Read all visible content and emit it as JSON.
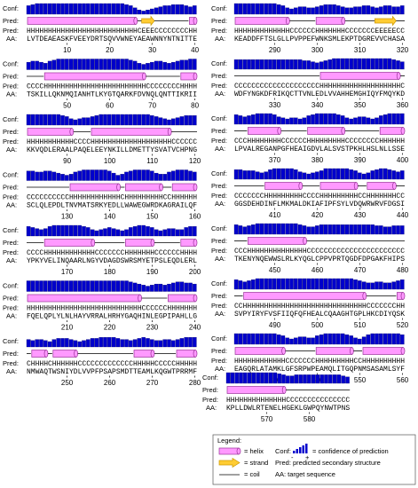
{
  "labels": {
    "conf": "Conf:",
    "pred": "Pred:",
    "aa": "AA:"
  },
  "blocks": [
    {
      "conf": [
        7,
        8,
        9,
        9,
        9,
        9,
        9,
        9,
        9,
        9,
        9,
        9,
        9,
        9,
        9,
        9,
        9,
        9,
        9,
        9,
        9,
        9,
        9,
        8,
        7,
        5,
        3,
        2,
        3,
        4,
        5,
        6,
        7,
        7,
        8,
        8,
        8,
        7,
        6,
        7
      ],
      "pred": "HHHHHHHHHHHHHHHHHHHHHHHHHHCEEECCCCCCCCHH",
      "aa": "LVTDEAEASKFVEEYDRTSQVVWNEYAEAWNNYNTNITTE",
      "ticks": [
        10,
        20,
        30,
        40
      ]
    },
    {
      "conf": [
        6,
        7,
        7,
        6,
        5,
        7,
        8,
        9,
        9,
        9,
        9,
        9,
        9,
        9,
        9,
        9,
        9,
        9,
        9,
        9,
        9,
        9,
        9,
        9,
        8,
        7,
        5,
        4,
        5,
        6,
        7,
        7,
        6,
        5,
        6,
        7,
        8,
        8,
        9,
        9
      ],
      "pred": "CCCCHHHHHHHHHHHHHHHHHHHHHHHHCCCCCCCCHHHH",
      "aa": "TSKILLQKNMQIANHTLKYGTQARKFDVNQLQNTTIKRII",
      "ticks": [
        50,
        60,
        70,
        80
      ]
    },
    {
      "conf": [
        9,
        9,
        9,
        9,
        9,
        9,
        9,
        9,
        8,
        7,
        5,
        4,
        5,
        6,
        6,
        7,
        8,
        9,
        9,
        9,
        9,
        9,
        9,
        9,
        9,
        9,
        9,
        9,
        9,
        8,
        7,
        6,
        5,
        4,
        5,
        6,
        7,
        8,
        8,
        8
      ],
      "pred": "HHHHHHHHHHHCCCCHHHHHHHHHHHHHHHHHHHCCCCCC",
      "aa": "KKVQDLERAALPAQELEEYNKILLDMETTYSVATVCHPNG",
      "ticks": [
        90,
        100,
        110,
        120
      ]
    },
    {
      "conf": [
        8,
        8,
        7,
        7,
        8,
        8,
        7,
        6,
        5,
        4,
        5,
        7,
        8,
        9,
        9,
        9,
        9,
        9,
        9,
        8,
        6,
        4,
        5,
        7,
        8,
        9,
        9,
        9,
        9,
        8,
        6,
        5,
        5,
        7,
        8,
        9,
        9,
        9,
        8,
        7
      ],
      "pred": "CCCCCCCCCCHHHHHHHHHHHHCHHHHHHHHHCCHHHHHH",
      "aa": "SCLQLEPDLTNVMATSRKYEDLLWAWEGWRDKAGRAILQF",
      "ticks": [
        130,
        140,
        150,
        160
      ]
    },
    {
      "conf": [
        8,
        7,
        6,
        5,
        6,
        8,
        9,
        9,
        9,
        9,
        9,
        9,
        9,
        8,
        7,
        5,
        4,
        5,
        6,
        7,
        6,
        5,
        4,
        5,
        7,
        8,
        9,
        9,
        8,
        7,
        5,
        4,
        5,
        6,
        6,
        5,
        5,
        7,
        8,
        8
      ],
      "pred": "CCCCHHHHHHHHHHHHCCCCCCCHHHHHHHCCCCCCHHHH",
      "aa": "YPKYVELINQAARLNGYVDAGDSWRSMYETPSLEQDLERL",
      "ticks": [
        170,
        180,
        190,
        200
      ]
    },
    {
      "conf": [
        9,
        9,
        9,
        9,
        9,
        9,
        9,
        9,
        9,
        9,
        9,
        9,
        9,
        9,
        9,
        9,
        9,
        9,
        9,
        9,
        9,
        9,
        9,
        9,
        8,
        7,
        6,
        5,
        4,
        5,
        6,
        6,
        5,
        6,
        7,
        8,
        8,
        7,
        7,
        6
      ],
      "pred": "HHHHHHHHHHHHHHHHHHHHHHHHHHHCCCCCCHHHHHHH",
      "aa": "FQELQPLYLNLHAYVRRALHRHYGAQHINLEGPIPAHLLG",
      "ticks": [
        210,
        220,
        230,
        240
      ]
    },
    {
      "conf": [
        6,
        5,
        6,
        6,
        5,
        4,
        6,
        7,
        7,
        7,
        6,
        5,
        4,
        5,
        6,
        7,
        7,
        8,
        8,
        8,
        8,
        7,
        6,
        6,
        5,
        6,
        7,
        8,
        7,
        6,
        5,
        5,
        6,
        6,
        5,
        6,
        7,
        8,
        8,
        8
      ],
      "pred": "CHHHHCHHHHHHCCCCCCCCCCCCCHHHHHCCCCCHHHHH",
      "aa": "NMWAQTWSNIYDLVVPFPSAPSMDTTEAMLKQGWTPRRMF",
      "ticks": [
        250,
        260,
        270,
        280
      ]
    },
    {
      "conf": [
        9,
        9,
        9,
        9,
        9,
        9,
        9,
        9,
        9,
        9,
        8,
        7,
        5,
        4,
        5,
        6,
        6,
        5,
        5,
        6,
        7,
        8,
        8,
        8,
        7,
        6,
        5,
        5,
        6,
        6,
        7,
        7,
        6,
        5,
        6,
        7,
        7,
        6,
        6,
        7
      ],
      "pred": "HHHHHHHHHHHHHCCCCCCHHHHHHHCCCCCCCEEEEECC",
      "aa": "KEADDFFTSLGLLPVPPEFWNKSMLEKPTDGREVVCHASA",
      "ticks": [
        290,
        300,
        310,
        320
      ]
    },
    {
      "conf": [
        8,
        8,
        8,
        8,
        8,
        8,
        8,
        8,
        8,
        8,
        8,
        8,
        8,
        8,
        8,
        8,
        7,
        7,
        6,
        5,
        6,
        7,
        8,
        9,
        9,
        9,
        9,
        9,
        9,
        9,
        9,
        9,
        9,
        9,
        9,
        9,
        9,
        8,
        7,
        6
      ],
      "pred": "CCCCCCCCCCCCCCCCCCCCHHHHHHHHHHHHHHHHHHHC",
      "aa": "WDFYNGKDFRIKQCTTVNLEDLVVAHHEMGHIQYFMQYKD",
      "ticks": [
        330,
        340,
        350,
        360
      ]
    },
    {
      "conf": [
        8,
        7,
        6,
        7,
        8,
        9,
        9,
        9,
        9,
        8,
        6,
        5,
        4,
        5,
        5,
        4,
        5,
        7,
        8,
        9,
        9,
        9,
        9,
        9,
        8,
        7,
        5,
        4,
        5,
        6,
        6,
        5,
        4,
        5,
        7,
        8,
        9,
        9,
        9,
        9
      ],
      "pred": "CCCHHHHHHHHCCCCCCHHHHHHHHHCCCCCCCCHHHHHH",
      "aa": "LPVALREGANPGFHEAIGDVLALSVSTPKHLHSLNLLSSE",
      "ticks": [
        370,
        380,
        390,
        400
      ]
    },
    {
      "conf": [
        8,
        8,
        7,
        7,
        7,
        6,
        5,
        6,
        8,
        9,
        9,
        9,
        9,
        9,
        8,
        6,
        5,
        4,
        5,
        6,
        7,
        9,
        9,
        9,
        9,
        9,
        9,
        8,
        7,
        5,
        4,
        5,
        7,
        8,
        9,
        9,
        8,
        7,
        6,
        7
      ],
      "pred": "CCCCCCCHHHHHHHHHCCCCHHHHHHHHHCCHHHHHHHCC",
      "aa": "GGSDEHDINFLMKMALDKIAFIPFSYLVDQWRWRVFDGSI",
      "ticks": [
        410,
        420,
        430,
        440
      ]
    },
    {
      "conf": [
        8,
        7,
        6,
        7,
        8,
        9,
        9,
        9,
        9,
        9,
        9,
        9,
        9,
        9,
        9,
        8,
        7,
        6,
        6,
        7,
        8,
        8,
        8,
        8,
        8,
        8,
        8,
        8,
        8,
        8,
        8,
        8,
        8,
        7,
        7,
        6,
        6,
        7,
        7,
        7
      ],
      "pred": "CCCHHHHHHHHHHHHHHCCCCCCCCCCCCCCCCCCCCCCC",
      "aa": "TKENYNQEWWSLRLKYQGLCPPVPRTQGDFDPGAKFHIPS",
      "ticks": [
        450,
        460,
        470,
        480
      ]
    },
    {
      "conf": [
        8,
        7,
        6,
        7,
        8,
        9,
        9,
        9,
        9,
        9,
        9,
        9,
        9,
        9,
        9,
        9,
        9,
        9,
        9,
        9,
        9,
        9,
        9,
        9,
        9,
        9,
        9,
        9,
        8,
        7,
        6,
        5,
        5,
        6,
        6,
        5,
        5,
        6,
        7,
        8
      ],
      "pred": "CCHHHHHHHHHHHHHHHHHHHHHHHHHHHHHCCCCCCCHH",
      "aa": "SVPYIRYFVSFIIQFQFHEALCQAAGHTGPLHKCDIYQSK",
      "ticks": [
        490,
        500,
        510,
        520
      ]
    },
    {
      "conf": [
        9,
        9,
        9,
        9,
        9,
        9,
        9,
        9,
        9,
        9,
        8,
        7,
        5,
        4,
        5,
        6,
        6,
        5,
        5,
        7,
        8,
        9,
        9,
        9,
        9,
        9,
        8,
        7,
        5,
        4,
        6,
        8,
        9,
        9,
        9,
        9,
        9,
        9,
        9,
        8
      ],
      "pred": "HHHHHHHHHHHHCCCCCCCHHHHHHHHHCCHHHHHHHHHH",
      "aa": "EAGQRLATAMKLGFSRPWPEAMQLITGQPNMSASAMLSYF",
      "ticks": [
        530,
        540,
        550,
        560
      ]
    },
    {
      "conf": [
        9,
        9,
        9,
        9,
        9,
        9,
        9,
        9,
        9,
        9,
        9,
        9,
        8,
        7,
        6,
        6,
        7,
        7,
        7,
        7,
        7,
        7,
        7,
        7,
        7,
        7,
        7,
        6,
        5
      ],
      "pred": "HHHHHHHHHHHHHHCCCCCCCCCCCCCCC",
      "aa": "KPLLDWLRTENELHGEKLGWPQYNWTPNS",
      "ticks": [
        570,
        580
      ]
    }
  ],
  "legend": {
    "title": "Legend:",
    "helix": "= helix",
    "strand": "= strand",
    "coil": "= coil",
    "conf": "Conf:",
    "conf_desc": "= confidence of prediction",
    "minus": "-",
    "plus": "+",
    "pred_desc": "Pred: predicted secondary structure",
    "aa_desc": "AA: target sequence"
  }
}
